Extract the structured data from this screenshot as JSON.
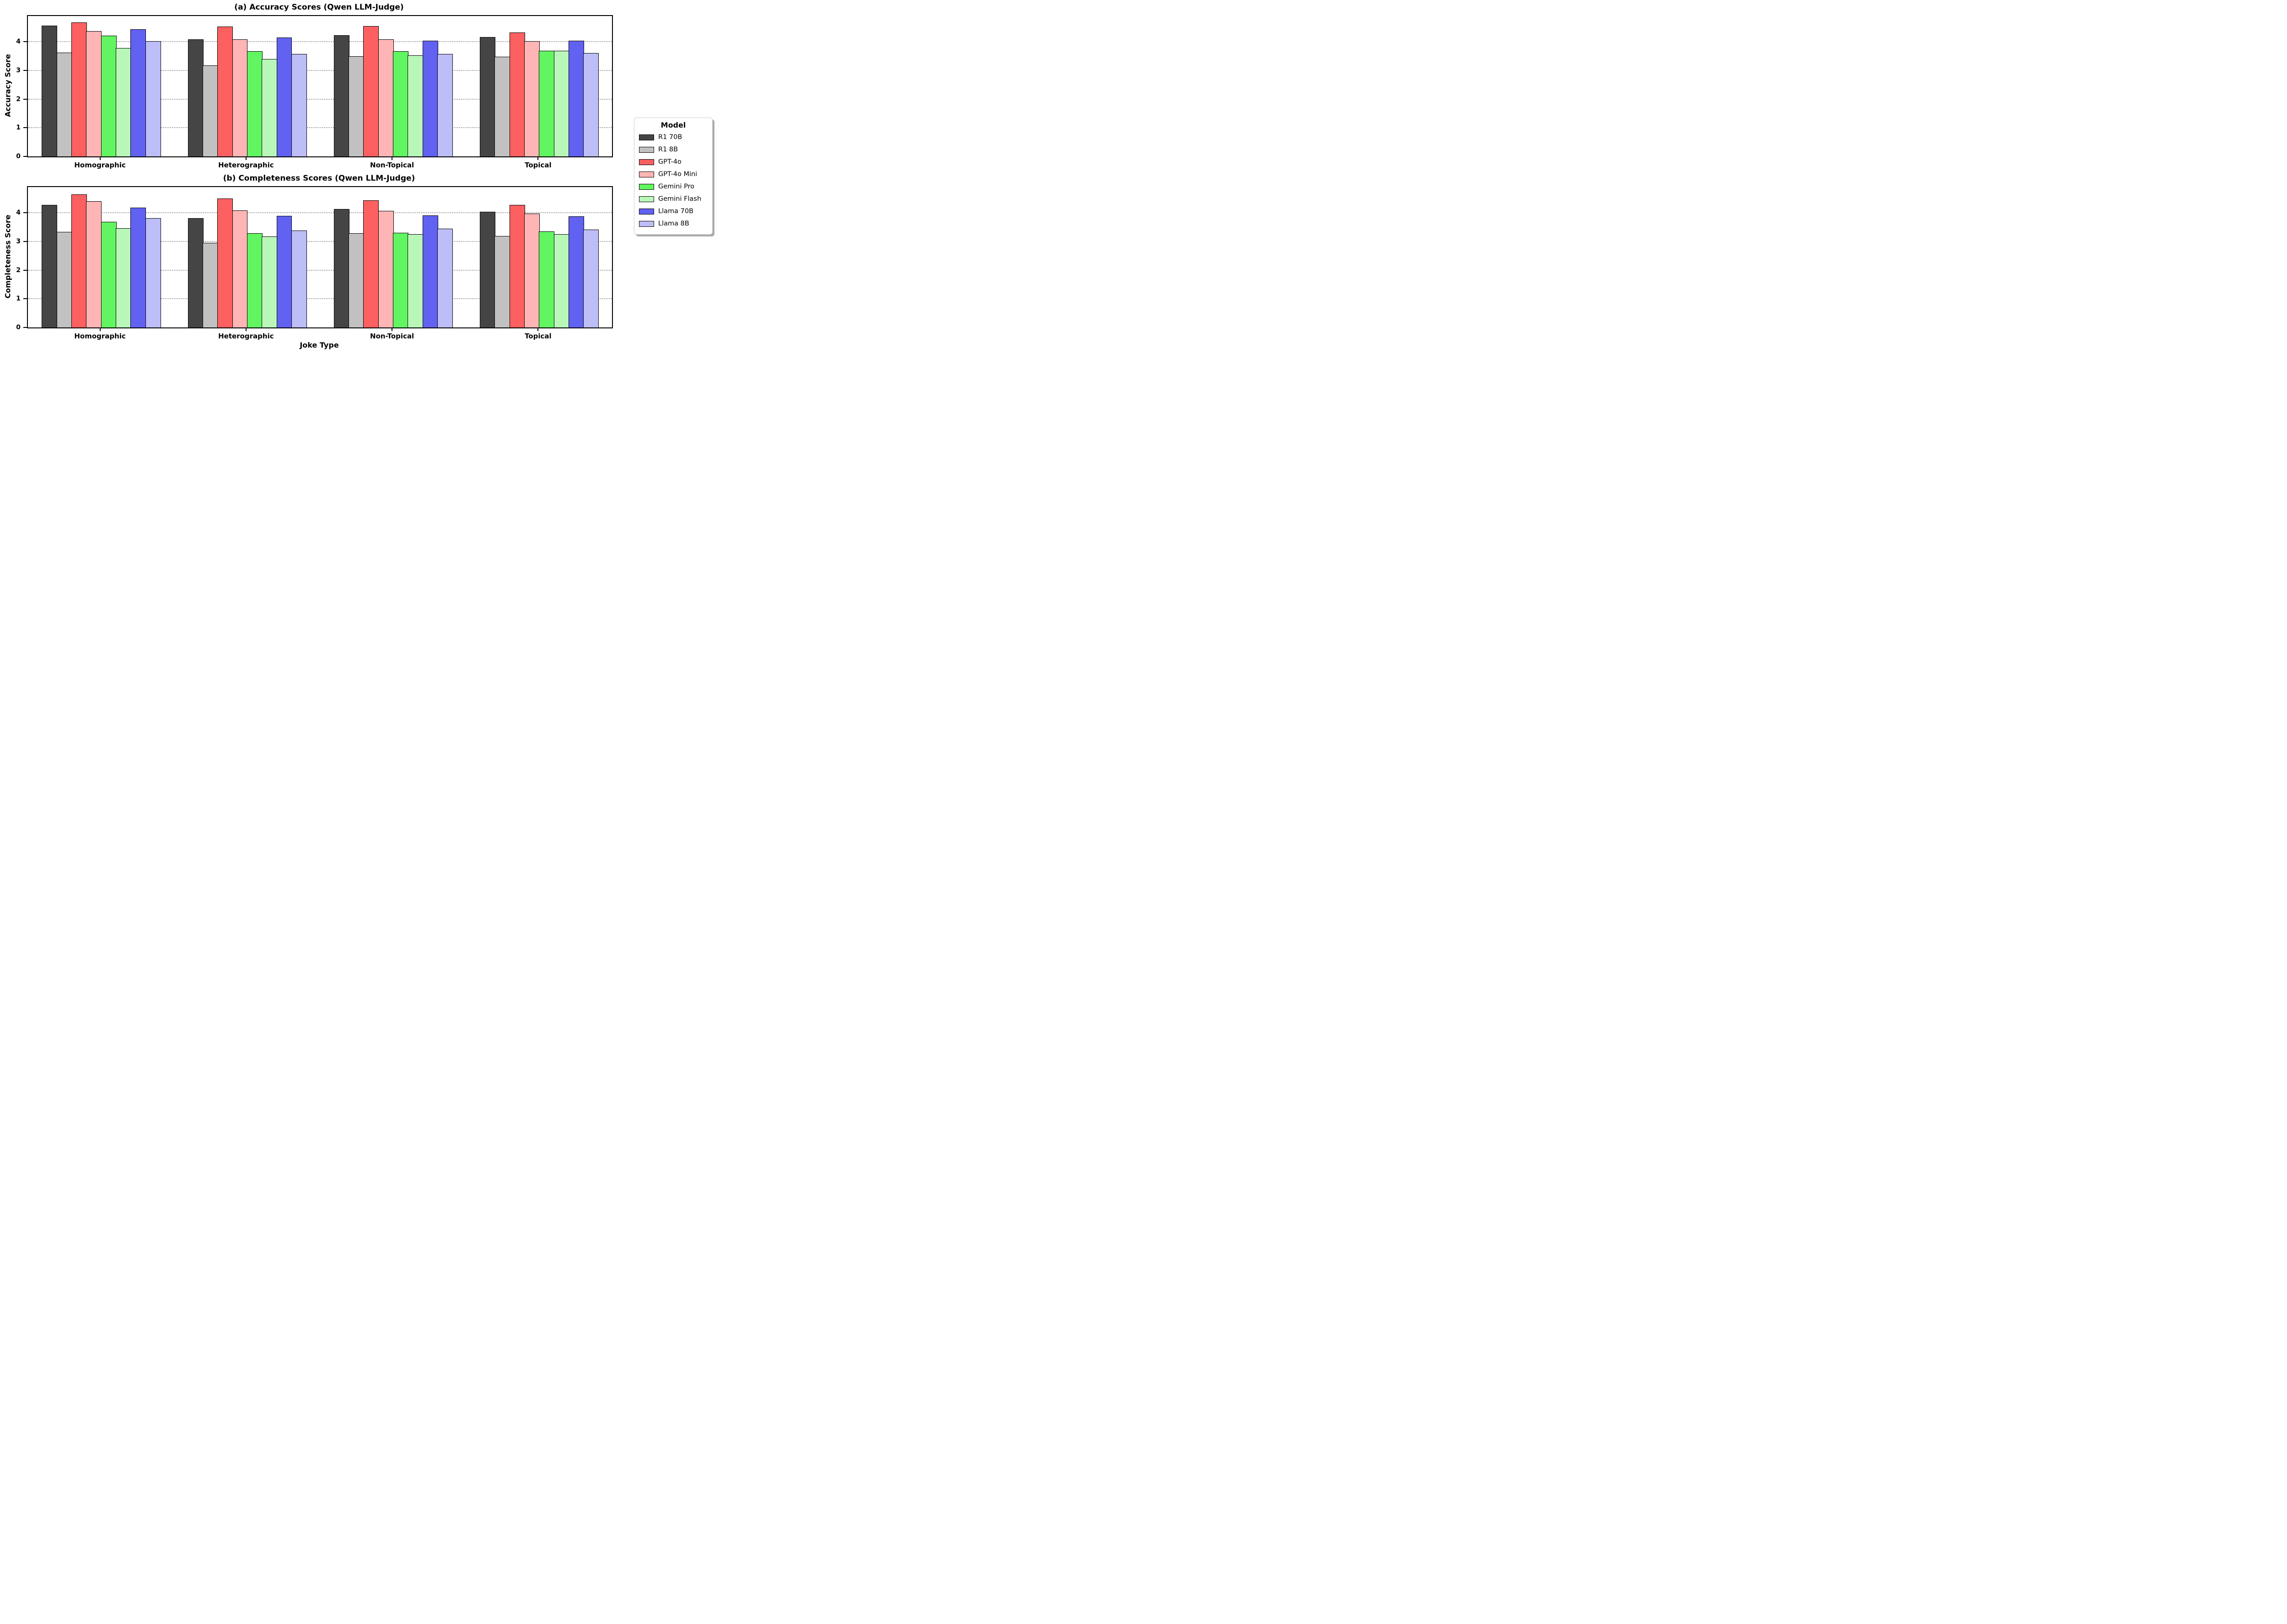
{
  "figure": {
    "background": "#ffffff",
    "xlabel": "Joke Type"
  },
  "legend": {
    "title": "Model",
    "position": "right-center",
    "edge_color": "#000000",
    "items": [
      {
        "label": "R1 70B",
        "color": "#454545"
      },
      {
        "label": "R1 8B",
        "color": "#c1c1c1"
      },
      {
        "label": "GPT-4o",
        "color": "#fc6060"
      },
      {
        "label": "GPT-4o Mini",
        "color": "#ffb5b5"
      },
      {
        "label": "Gemini Pro",
        "color": "#61f561"
      },
      {
        "label": "Gemini Flash",
        "color": "#b9f7b9"
      },
      {
        "label": "Llama 70B",
        "color": "#6161f2"
      },
      {
        "label": "Llama 8B",
        "color": "#bdbdf8"
      }
    ]
  },
  "chart_data": [
    {
      "type": "bar",
      "title": "(a) Accuracy Scores (Qwen LLM-Judge)",
      "ylabel": "Accuracy Score",
      "xlabel": "",
      "categories": [
        "Homographic",
        "Heterographic",
        "Non-Topical",
        "Topical"
      ],
      "series": [
        {
          "name": "R1 70B",
          "values": [
            4.56,
            4.09,
            4.23,
            4.17
          ]
        },
        {
          "name": "R1 8B",
          "values": [
            3.62,
            3.18,
            3.49,
            3.48
          ]
        },
        {
          "name": "GPT-4o",
          "values": [
            4.67,
            4.54,
            4.55,
            4.33
          ]
        },
        {
          "name": "GPT-4o Mini",
          "values": [
            4.37,
            4.09,
            4.08,
            4.03
          ]
        },
        {
          "name": "Gemini Pro",
          "values": [
            4.21,
            3.67,
            3.67,
            3.68
          ]
        },
        {
          "name": "Gemini Flash",
          "values": [
            3.79,
            3.4,
            3.53,
            3.68
          ]
        },
        {
          "name": "Llama 70B",
          "values": [
            4.44,
            4.15,
            4.04,
            4.04
          ]
        },
        {
          "name": "Llama 8B",
          "values": [
            4.03,
            3.58,
            3.58,
            3.6
          ]
        }
      ],
      "ylim": [
        0,
        4.9
      ],
      "yticks": [
        0,
        1,
        2,
        3,
        4
      ],
      "grid": "horizontal dotted at 1,2,3,4",
      "legend_position": "outside-right"
    },
    {
      "type": "bar",
      "title": "(b) Completeness Scores (Qwen LLM-Judge)",
      "ylabel": "Completeness Score",
      "xlabel": "Joke Type",
      "categories": [
        "Homographic",
        "Heterographic",
        "Non-Topical",
        "Topical"
      ],
      "series": [
        {
          "name": "R1 70B",
          "values": [
            4.27,
            3.81,
            4.13,
            4.04
          ]
        },
        {
          "name": "R1 8B",
          "values": [
            3.34,
            2.95,
            3.29,
            3.2
          ]
        },
        {
          "name": "GPT-4o",
          "values": [
            4.64,
            4.5,
            4.43,
            4.27
          ]
        },
        {
          "name": "GPT-4o Mini",
          "values": [
            4.4,
            4.09,
            4.07,
            3.98
          ]
        },
        {
          "name": "Gemini Pro",
          "values": [
            3.68,
            3.29,
            3.3,
            3.35
          ]
        },
        {
          "name": "Gemini Flash",
          "values": [
            3.46,
            3.17,
            3.26,
            3.26
          ]
        },
        {
          "name": "Llama 70B",
          "values": [
            4.18,
            3.89,
            3.91,
            3.88
          ]
        },
        {
          "name": "Llama 8B",
          "values": [
            3.82,
            3.38,
            3.45,
            3.41
          ]
        }
      ],
      "ylim": [
        0,
        4.9
      ],
      "yticks": [
        0,
        1,
        2,
        3,
        4
      ],
      "grid": "horizontal dotted at 1,2,3,4",
      "legend_position": "outside-right"
    }
  ]
}
